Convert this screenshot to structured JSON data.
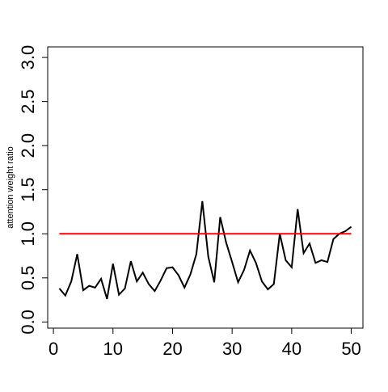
{
  "chart_data": {
    "type": "line",
    "y_label": "attention weight ratio",
    "x": [
      1,
      2,
      3,
      4,
      5,
      6,
      7,
      8,
      9,
      10,
      11,
      12,
      13,
      14,
      15,
      16,
      17,
      18,
      19,
      20,
      21,
      22,
      23,
      24,
      25,
      26,
      27,
      28,
      29,
      30,
      31,
      32,
      33,
      34,
      35,
      36,
      37,
      38,
      39,
      40,
      41,
      42,
      43,
      44,
      45,
      46,
      47,
      48,
      49,
      50
    ],
    "series": [
      {
        "color": "#000000",
        "values": [
          0.38,
          0.3,
          0.46,
          0.77,
          0.36,
          0.41,
          0.39,
          0.49,
          0.26,
          0.66,
          0.31,
          0.38,
          0.69,
          0.46,
          0.56,
          0.43,
          0.35,
          0.47,
          0.61,
          0.62,
          0.53,
          0.39,
          0.54,
          0.77,
          1.37,
          0.74,
          0.45,
          1.19,
          0.9,
          0.68,
          0.45,
          0.59,
          0.81,
          0.67,
          0.46,
          0.37,
          0.43,
          1.0,
          0.7,
          0.62,
          1.28,
          0.78,
          0.89,
          0.67,
          0.7,
          0.68,
          0.94,
          1.0,
          1.03,
          1.08
        ]
      },
      {
        "color": "#ff0000",
        "x": [
          1,
          50
        ],
        "values": [
          1,
          1
        ]
      }
    ],
    "xlim": [
      -0.96,
      51.96
    ],
    "xticks": [
      0,
      10,
      20,
      30,
      40,
      50
    ],
    "ylim": [
      -0.07,
      3.12
    ],
    "yticks": [
      {
        "value": 0,
        "label": "0.0"
      },
      {
        "value": 0.5,
        "label": "0.5"
      },
      {
        "value": 1,
        "label": "1.0"
      },
      {
        "value": 1.5,
        "label": "1.5"
      },
      {
        "value": 2,
        "label": "2.0"
      },
      {
        "value": 2.5,
        "label": "2.5"
      },
      {
        "value": 3,
        "label": "3.0"
      }
    ]
  }
}
